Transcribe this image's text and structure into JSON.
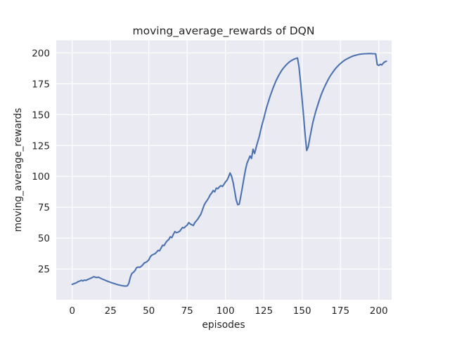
{
  "figure": {
    "background": "#ffffff"
  },
  "chart_data": {
    "type": "line",
    "title": "moving_average_rewards of DQN",
    "xlabel": "episodes",
    "ylabel": "moving_average_rewards",
    "x_ticks": [
      0,
      25,
      50,
      75,
      100,
      125,
      150,
      175,
      200
    ],
    "y_ticks": [
      25,
      50,
      75,
      100,
      125,
      150,
      175,
      200
    ],
    "xlim": [
      -10.4,
      208.4
    ],
    "ylim": [
      0,
      210.2
    ],
    "grid": true,
    "legend_position": "none",
    "style": {
      "axes_background": "#EAEAF2",
      "grid_color": "#ffffff",
      "line_color": "#4C72B0",
      "text_color": "#262626",
      "line_width": 2.1
    },
    "series": [
      {
        "name": "moving_average_rewards",
        "color": "#4C72B0",
        "points": [
          [
            0,
            12.5
          ],
          [
            1,
            13
          ],
          [
            2,
            13.4
          ],
          [
            3,
            14
          ],
          [
            4,
            14.8
          ],
          [
            5,
            15.2
          ],
          [
            6,
            15.8
          ],
          [
            7,
            15.3
          ],
          [
            8,
            16
          ],
          [
            9,
            15.7
          ],
          [
            10,
            16.4
          ],
          [
            11,
            16.9
          ],
          [
            12,
            17.4
          ],
          [
            13,
            18
          ],
          [
            14,
            18.7
          ],
          [
            15,
            18.3
          ],
          [
            16,
            18
          ],
          [
            17,
            18.4
          ],
          [
            18,
            17.8
          ],
          [
            19,
            17.2
          ],
          [
            20,
            16.6
          ],
          [
            21,
            16.1
          ],
          [
            22,
            15.6
          ],
          [
            23,
            15.1
          ],
          [
            24,
            14.6
          ],
          [
            25,
            14.1
          ],
          [
            26,
            13.7
          ],
          [
            27,
            13.3
          ],
          [
            28,
            12.9
          ],
          [
            29,
            12.5
          ],
          [
            30,
            12.2
          ],
          [
            31,
            11.9
          ],
          [
            32,
            11.6
          ],
          [
            33,
            11.4
          ],
          [
            34,
            11.2
          ],
          [
            35,
            11.1
          ],
          [
            36,
            11.4
          ],
          [
            37,
            13.5
          ],
          [
            38,
            18.5
          ],
          [
            39,
            21.5
          ],
          [
            40,
            22.3
          ],
          [
            41,
            23.8
          ],
          [
            42,
            26
          ],
          [
            43,
            26.5
          ],
          [
            44,
            26.3
          ],
          [
            45,
            27
          ],
          [
            46,
            28.3
          ],
          [
            47,
            29.8
          ],
          [
            48,
            30.3
          ],
          [
            49,
            31.2
          ],
          [
            50,
            32.4
          ],
          [
            51,
            35
          ],
          [
            52,
            36.2
          ],
          [
            53,
            36.8
          ],
          [
            54,
            37.3
          ],
          [
            55,
            38.5
          ],
          [
            56,
            40
          ],
          [
            57,
            39.7
          ],
          [
            58,
            42
          ],
          [
            59,
            44.2
          ],
          [
            60,
            44
          ],
          [
            61,
            46.2
          ],
          [
            62,
            47.8
          ],
          [
            63,
            48.8
          ],
          [
            64,
            51
          ],
          [
            65,
            50.4
          ],
          [
            66,
            53
          ],
          [
            67,
            55.3
          ],
          [
            68,
            54.4
          ],
          [
            69,
            54.8
          ],
          [
            70,
            55.4
          ],
          [
            71,
            57
          ],
          [
            72,
            58.6
          ],
          [
            73,
            58.2
          ],
          [
            74,
            59.5
          ],
          [
            75,
            60.5
          ],
          [
            76,
            62.5
          ],
          [
            77,
            61.5
          ],
          [
            78,
            60.8
          ],
          [
            79,
            60.2
          ],
          [
            80,
            62.5
          ],
          [
            81,
            64
          ],
          [
            82,
            65.5
          ],
          [
            83,
            67.5
          ],
          [
            84,
            69.5
          ],
          [
            85,
            73
          ],
          [
            86,
            76.5
          ],
          [
            87,
            78.8
          ],
          [
            88,
            80.5
          ],
          [
            89,
            82.5
          ],
          [
            90,
            85
          ],
          [
            91,
            86.5
          ],
          [
            92,
            88.5
          ],
          [
            93,
            87.5
          ],
          [
            94,
            90.5
          ],
          [
            95,
            90
          ],
          [
            96,
            91.5
          ],
          [
            97,
            92.5
          ],
          [
            98,
            91.8
          ],
          [
            99,
            93.5
          ],
          [
            100,
            95.5
          ],
          [
            101,
            97
          ],
          [
            102,
            99.5
          ],
          [
            103,
            102.8
          ],
          [
            104,
            100
          ],
          [
            105,
            95
          ],
          [
            106,
            88
          ],
          [
            107,
            81
          ],
          [
            108,
            77
          ],
          [
            109,
            77.5
          ],
          [
            110,
            84
          ],
          [
            111,
            91
          ],
          [
            112,
            98
          ],
          [
            113,
            105
          ],
          [
            114,
            110.5
          ],
          [
            115,
            113.5
          ],
          [
            116,
            116.5
          ],
          [
            117,
            114.5
          ],
          [
            118,
            122
          ],
          [
            119,
            118.5
          ],
          [
            120,
            123.5
          ],
          [
            121,
            128
          ],
          [
            122,
            132
          ],
          [
            123,
            137.5
          ],
          [
            124,
            142.5
          ],
          [
            125,
            147
          ],
          [
            126,
            152
          ],
          [
            127,
            156.5
          ],
          [
            128,
            160.5
          ],
          [
            129,
            164.5
          ],
          [
            130,
            168
          ],
          [
            131,
            171.5
          ],
          [
            132,
            174.5
          ],
          [
            133,
            177.5
          ],
          [
            134,
            180
          ],
          [
            135,
            182.4
          ],
          [
            136,
            184.5
          ],
          [
            137,
            186.4
          ],
          [
            138,
            188
          ],
          [
            139,
            189.5
          ],
          [
            140,
            190.8
          ],
          [
            141,
            192
          ],
          [
            142,
            193
          ],
          [
            143,
            193.8
          ],
          [
            144,
            194.5
          ],
          [
            145,
            195.1
          ],
          [
            146,
            195.6
          ],
          [
            147,
            195.9
          ],
          [
            148,
            188.5
          ],
          [
            149,
            176
          ],
          [
            150,
            162
          ],
          [
            151,
            148
          ],
          [
            152,
            133.5
          ],
          [
            153,
            121
          ],
          [
            154,
            124
          ],
          [
            155,
            131
          ],
          [
            156,
            137.5
          ],
          [
            157,
            143.5
          ],
          [
            158,
            148.5
          ],
          [
            159,
            153
          ],
          [
            160,
            157
          ],
          [
            161,
            161
          ],
          [
            162,
            164.5
          ],
          [
            163,
            167.8
          ],
          [
            164,
            170.8
          ],
          [
            165,
            173.5
          ],
          [
            166,
            176
          ],
          [
            167,
            178.4
          ],
          [
            168,
            180.6
          ],
          [
            169,
            182.6
          ],
          [
            170,
            184.4
          ],
          [
            171,
            186.1
          ],
          [
            172,
            187.6
          ],
          [
            173,
            189
          ],
          [
            174,
            190.3
          ],
          [
            175,
            191.4
          ],
          [
            176,
            192.5
          ],
          [
            177,
            193.4
          ],
          [
            178,
            194.3
          ],
          [
            179,
            195
          ],
          [
            180,
            195.7
          ],
          [
            181,
            196.3
          ],
          [
            182,
            196.9
          ],
          [
            183,
            197.4
          ],
          [
            184,
            197.8
          ],
          [
            185,
            198.2
          ],
          [
            186,
            198.5
          ],
          [
            187,
            198.8
          ],
          [
            188,
            199
          ],
          [
            189,
            199.2
          ],
          [
            190,
            199.3
          ],
          [
            191,
            199.4
          ],
          [
            192,
            199.4
          ],
          [
            193,
            199.5
          ],
          [
            194,
            199.5
          ],
          [
            195,
            199.5
          ],
          [
            196,
            199.4
          ],
          [
            197,
            199.4
          ],
          [
            198,
            199.3
          ],
          [
            199,
            190.6
          ],
          [
            200,
            189.9
          ],
          [
            201,
            190.8
          ],
          [
            202,
            190.3
          ],
          [
            203,
            191.8
          ],
          [
            204,
            192.9
          ],
          [
            205,
            193.3
          ]
        ]
      }
    ]
  }
}
